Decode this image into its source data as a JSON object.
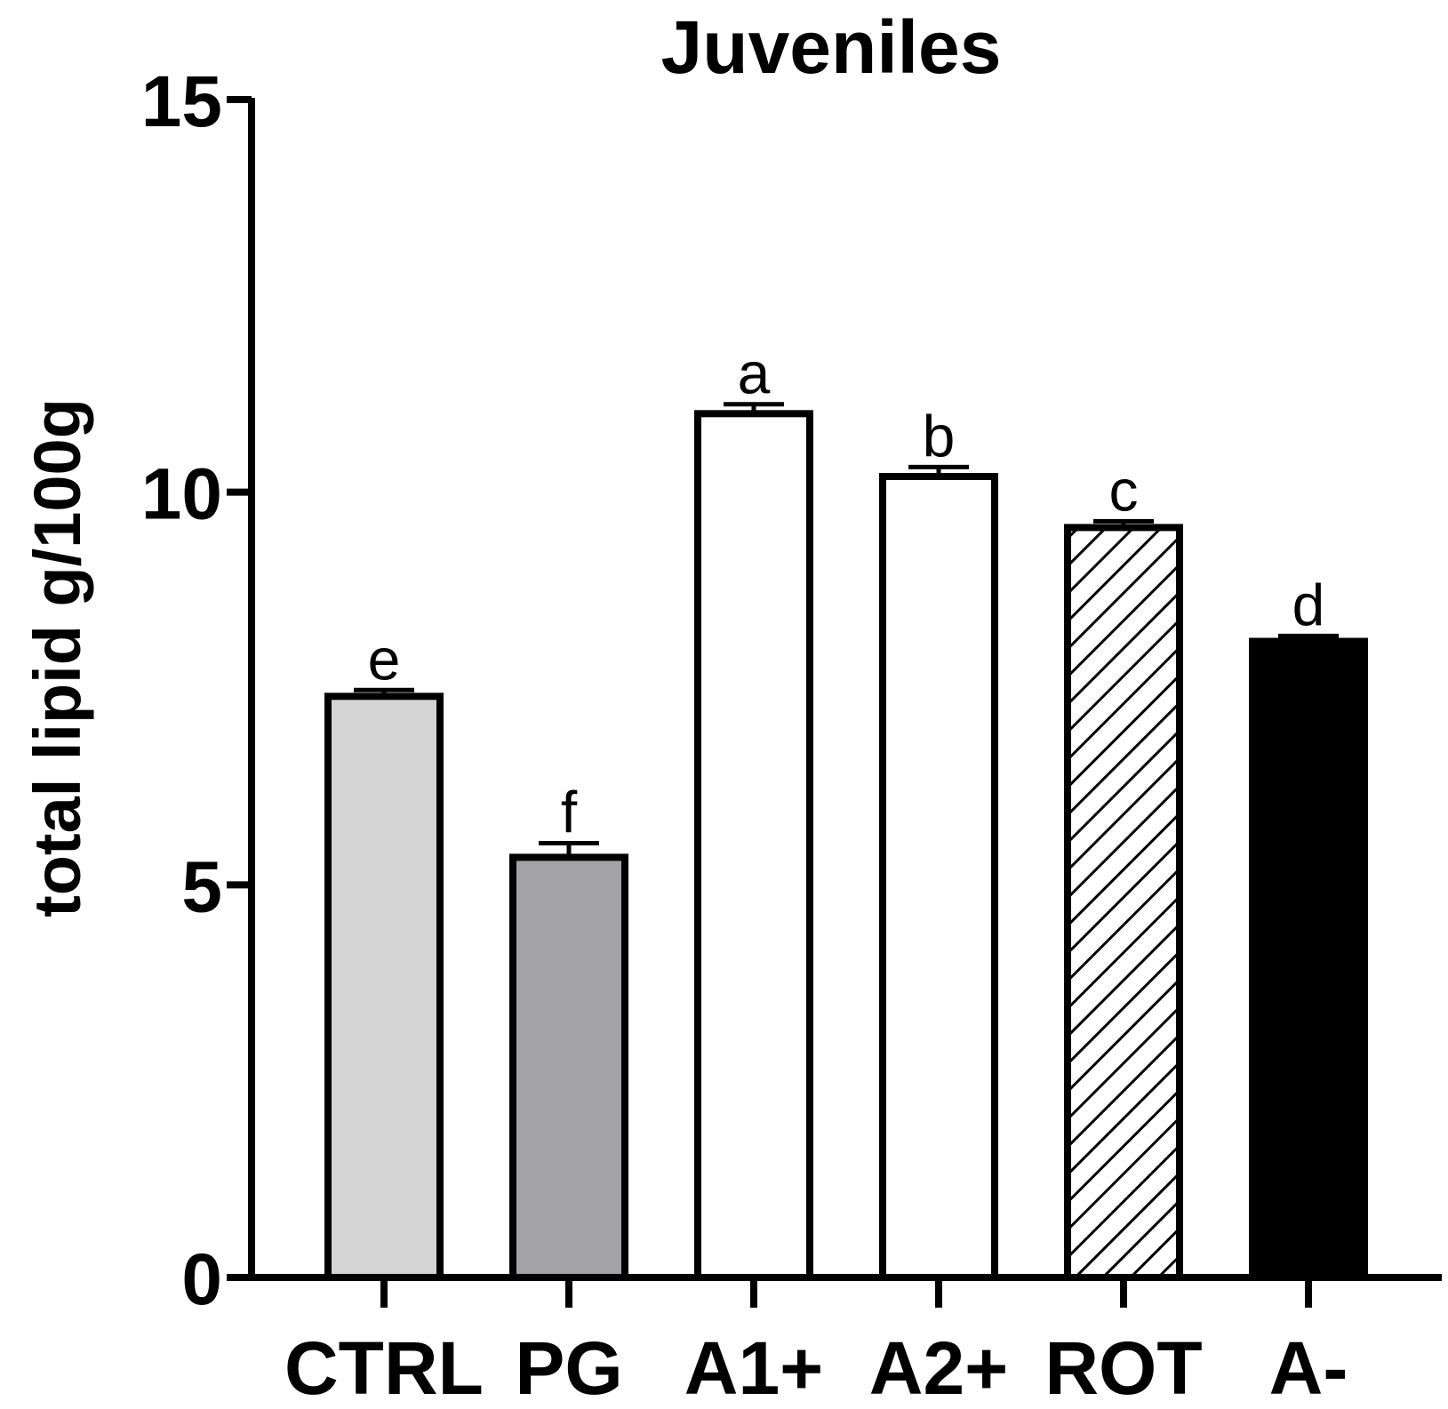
{
  "chart_data": {
    "type": "bar",
    "title": "Juveniles",
    "xlabel": "",
    "ylabel": "total lipid g/100g",
    "ylim": [
      0,
      15
    ],
    "yticks": [
      "0",
      "5",
      "10",
      "15"
    ],
    "categories": [
      "CTRL",
      "PG",
      "A1+",
      "A2+",
      "ROT",
      "A-"
    ],
    "values": [
      7.4,
      5.35,
      11.0,
      10.2,
      9.55,
      8.1
    ],
    "errors": [
      0.08,
      0.18,
      0.12,
      0.12,
      0.08,
      0.07
    ],
    "significance": [
      "e",
      "f",
      "a",
      "b",
      "c",
      "d"
    ],
    "fills": [
      "#d4d4d4",
      "#a3a2a7",
      "#ffffff",
      "#ffffff",
      "hatch",
      "#000000"
    ],
    "grid": false
  }
}
